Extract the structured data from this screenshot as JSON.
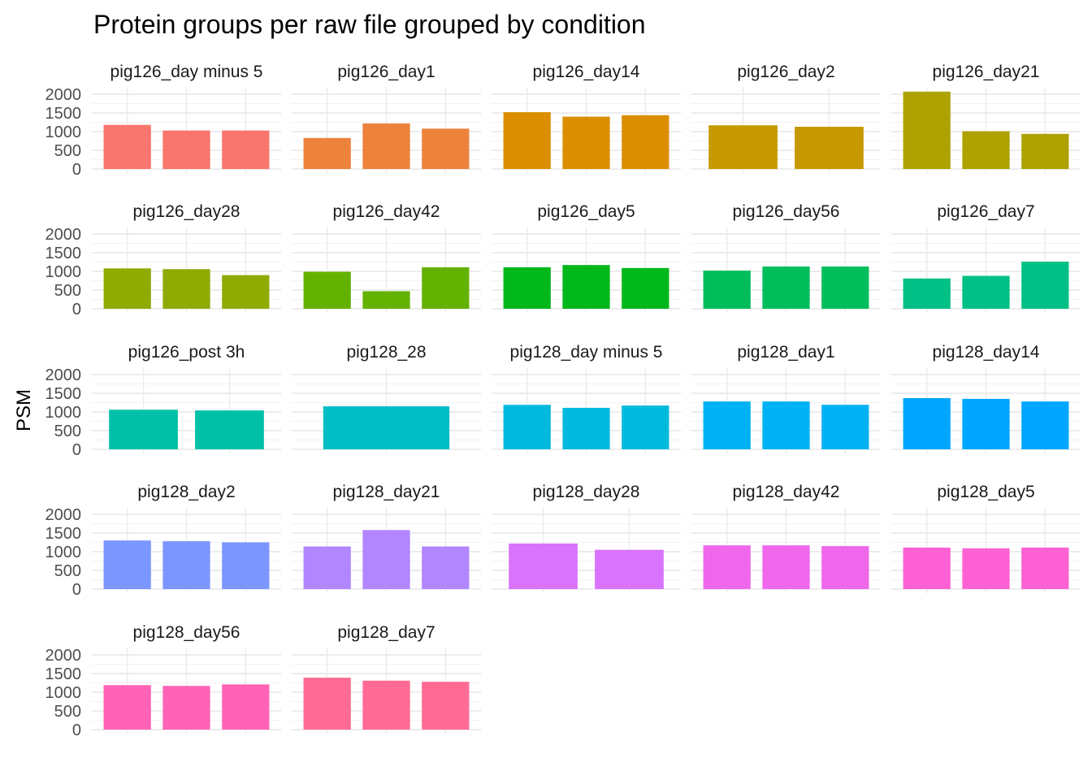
{
  "chart_data": {
    "type": "bar",
    "layout": "faceted",
    "title": "Protein groups per raw file grouped by condition",
    "xlabel": "",
    "ylabel": "PSM",
    "ylim": [
      0,
      2100
    ],
    "yticks": [
      0,
      500,
      1000,
      1500,
      2000
    ],
    "ytick_labels": [
      "0",
      "500",
      "1000",
      "1500",
      "2000"
    ],
    "grid": true,
    "legend": "none",
    "facets": [
      {
        "label": "pig126_day minus 5",
        "color": "#F8766D",
        "values": [
          1180,
          1030,
          1030
        ]
      },
      {
        "label": "pig126_day1",
        "color": "#EC823C",
        "values": [
          830,
          1220,
          1080
        ]
      },
      {
        "label": "pig126_day14",
        "color": "#DB8E00",
        "values": [
          1520,
          1400,
          1440
        ]
      },
      {
        "label": "pig126_day2",
        "color": "#C69900",
        "values": [
          1170,
          1130
        ]
      },
      {
        "label": "pig126_day21",
        "color": "#AEA200",
        "values": [
          2070,
          1010,
          940
        ]
      },
      {
        "label": "pig126_day28",
        "color": "#8FAA00",
        "values": [
          1080,
          1060,
          900
        ]
      },
      {
        "label": "pig126_day42",
        "color": "#64B200",
        "values": [
          990,
          470,
          1110
        ]
      },
      {
        "label": "pig126_day5",
        "color": "#00B81B",
        "values": [
          1110,
          1170,
          1090
        ]
      },
      {
        "label": "pig126_day56",
        "color": "#00BD5C",
        "values": [
          1020,
          1130,
          1130
        ]
      },
      {
        "label": "pig126_day7",
        "color": "#00C085",
        "values": [
          810,
          880,
          1260
        ]
      },
      {
        "label": "pig126_post 3h",
        "color": "#00C1A7",
        "values": [
          1060,
          1040
        ]
      },
      {
        "label": "pig128_28",
        "color": "#00BFC4",
        "values": [
          1150
        ]
      },
      {
        "label": "pig128_day minus 5",
        "color": "#00BADE",
        "values": [
          1190,
          1110,
          1170
        ]
      },
      {
        "label": "pig128_day1",
        "color": "#00B2F3",
        "values": [
          1280,
          1280,
          1190
        ]
      },
      {
        "label": "pig128_day14",
        "color": "#00A6FF",
        "values": [
          1370,
          1350,
          1280
        ]
      },
      {
        "label": "pig128_day2",
        "color": "#7C96FF",
        "values": [
          1300,
          1280,
          1250
        ]
      },
      {
        "label": "pig128_day21",
        "color": "#B186FF",
        "values": [
          1140,
          1580,
          1140
        ]
      },
      {
        "label": "pig128_day28",
        "color": "#D973FC",
        "values": [
          1220,
          1050
        ]
      },
      {
        "label": "pig128_day42",
        "color": "#EF67EB",
        "values": [
          1170,
          1170,
          1150
        ]
      },
      {
        "label": "pig128_day5",
        "color": "#FD61D3",
        "values": [
          1110,
          1090,
          1110
        ]
      },
      {
        "label": "pig128_day56",
        "color": "#FF63B6",
        "values": [
          1190,
          1170,
          1210
        ]
      },
      {
        "label": "pig128_day7",
        "color": "#FF6B94",
        "values": [
          1390,
          1310,
          1280
        ]
      }
    ]
  }
}
